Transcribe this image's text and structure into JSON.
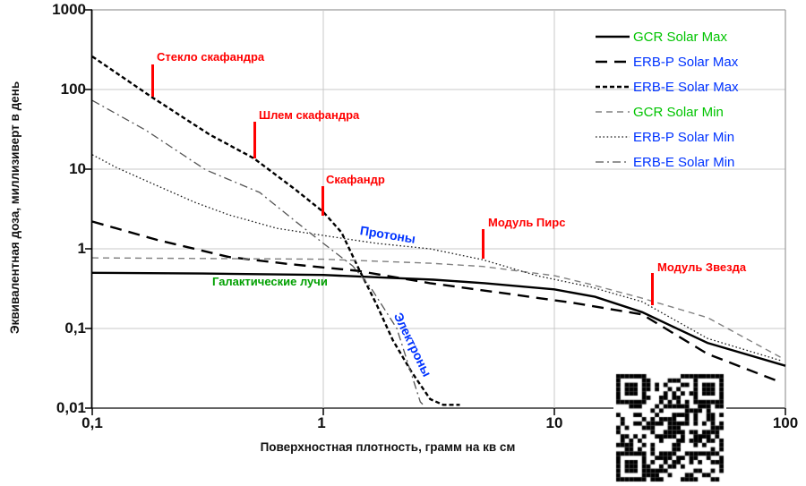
{
  "axes": {
    "x": {
      "title": "Поверхностная плотность, грамм на кв см",
      "scale": "log",
      "ticks": [
        {
          "label": "0,1",
          "value": 0.1
        },
        {
          "label": "1",
          "value": 1
        },
        {
          "label": "10",
          "value": 10
        },
        {
          "label": "100",
          "value": 100
        }
      ]
    },
    "y": {
      "title": "Эквивалентная доза, миллизиверт в день",
      "scale": "log",
      "ticks": [
        {
          "label": "1000",
          "value": 1000
        },
        {
          "label": "100",
          "value": 100
        },
        {
          "label": "10",
          "value": 10
        },
        {
          "label": "1",
          "value": 1
        },
        {
          "label": "0,1",
          "value": 0.1
        },
        {
          "label": "0,01",
          "value": 0.01
        }
      ]
    }
  },
  "chart_data": {
    "type": "line",
    "title": "",
    "xlabel": "Поверхностная плотность, грамм на кв см",
    "ylabel": "Эквивалентная доза, миллизиверт в день",
    "xscale": "log",
    "yscale": "log",
    "xlim": [
      0.1,
      100
    ],
    "ylim": [
      0.01,
      1000
    ],
    "grid": true,
    "legend_position": "top-right",
    "series": [
      {
        "name": "GCR Solar Max",
        "line_color": "#000000",
        "label_color": "#00c400",
        "dash": "",
        "width": 2.4,
        "x": [
          0.1,
          0.3,
          1,
          2,
          3,
          5,
          10,
          15,
          24,
          46,
          100
        ],
        "y": [
          0.5,
          0.49,
          0.47,
          0.43,
          0.41,
          0.37,
          0.31,
          0.25,
          0.16,
          0.066,
          0.034
        ]
      },
      {
        "name": "ERB-P Solar Max",
        "line_color": "#000000",
        "label_color": "#0033ff",
        "dash": "13 8",
        "width": 2.4,
        "x": [
          0.1,
          0.19,
          0.39,
          0.72,
          1.4,
          2.9,
          5.9,
          12,
          24,
          46,
          96
        ],
        "y": [
          2.2,
          1.3,
          0.79,
          0.64,
          0.53,
          0.37,
          0.28,
          0.21,
          0.15,
          0.048,
          0.021
        ]
      },
      {
        "name": "ERB-E Solar Max",
        "line_color": "#000000",
        "label_color": "#0033ff",
        "dash": "5 3",
        "width": 2.4,
        "x": [
          0.1,
          0.18,
          0.32,
          0.5,
          0.76,
          1.0,
          1.2,
          1.42,
          1.7,
          2.0,
          2.4,
          2.9,
          3.3,
          3.9
        ],
        "y": [
          260,
          81,
          27.5,
          13.7,
          5.5,
          2.9,
          1.6,
          0.57,
          0.2,
          0.071,
          0.029,
          0.013,
          0.011,
          0.011
        ]
      },
      {
        "name": "GCR Solar Min",
        "line_color": "#808080",
        "label_color": "#00c400",
        "dash": "7 5",
        "width": 1.4,
        "x": [
          0.1,
          1,
          2.9,
          4.9,
          10,
          14.5,
          24,
          46,
          99
        ],
        "y": [
          0.77,
          0.74,
          0.66,
          0.6,
          0.46,
          0.355,
          0.24,
          0.137,
          0.041
        ]
      },
      {
        "name": "ERB-P Solar Min",
        "line_color": "#1a1a1a",
        "label_color": "#0033ff",
        "dash": "1.6 2.6",
        "width": 1.3,
        "x": [
          0.1,
          0.127,
          0.182,
          0.28,
          0.39,
          0.63,
          1.0,
          1.7,
          2.9,
          4.9,
          8.4,
          14.5,
          24,
          46,
          97
        ],
        "y": [
          15.2,
          10.5,
          6.6,
          3.8,
          2.67,
          1.81,
          1.47,
          1.17,
          1.0,
          0.73,
          0.46,
          0.33,
          0.217,
          0.075,
          0.039
        ]
      },
      {
        "name": "ERB-E Solar Min",
        "line_color": "#555555",
        "label_color": "#0033ff",
        "dash": "9 4 2 4",
        "width": 1.3,
        "x": [
          0.1,
          0.17,
          0.31,
          0.53,
          0.76,
          1.0,
          1.34,
          1.6,
          2.08,
          2.63,
          2.75
        ],
        "y": [
          73,
          31,
          9.8,
          5.1,
          2.2,
          1.17,
          0.61,
          0.33,
          0.1,
          0.012,
          0.0105
        ]
      }
    ]
  },
  "annotations": [
    {
      "text": "Стекло скафандра",
      "color": "#ff0000",
      "type": "callout"
    },
    {
      "text": "Шлем скафандра",
      "color": "#ff0000",
      "type": "callout"
    },
    {
      "text": "Скафандр",
      "color": "#ff0000",
      "type": "callout"
    },
    {
      "text": "Модуль Пирс",
      "color": "#ff0000",
      "type": "callout"
    },
    {
      "text": "Модуль Звезда",
      "color": "#ff0000",
      "type": "callout"
    },
    {
      "text": "Протоны",
      "color": "#0033ff",
      "type": "label"
    },
    {
      "text": "Электроны",
      "color": "#0033ff",
      "type": "label"
    },
    {
      "text": "Галактические лучи",
      "color": "#00a000",
      "type": "label"
    }
  ],
  "decorations": {
    "qr_code": "qr-code"
  }
}
